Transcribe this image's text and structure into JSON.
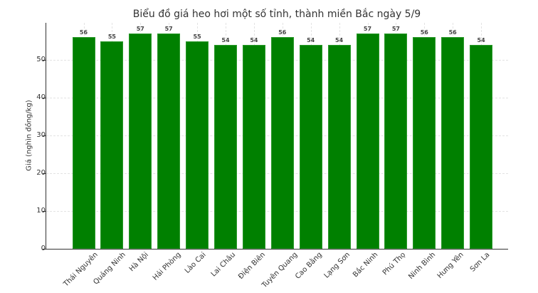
{
  "chart_data": {
    "type": "bar",
    "title": "Biểu đồ giá heo hơi một số tỉnh, thành miền Bắc ngày 5/9",
    "xlabel": "",
    "ylabel": "Giá (nghìn đồng/kg)",
    "categories": [
      "Thái Nguyên",
      "Quảng Ninh",
      "Hà Nội",
      "Hải Phòng",
      "Lào Cai",
      "Lai Châu",
      "Điện Biên",
      "Tuyên Quang",
      "Cao Bằng",
      "Lạng Sơn",
      "Bắc Ninh",
      "Phú Thọ",
      "Ninh Bình",
      "Hưng Yên",
      "Sơn La"
    ],
    "values": [
      56,
      55,
      57,
      57,
      55,
      54,
      54,
      56,
      54,
      54,
      57,
      57,
      56,
      56,
      54
    ],
    "value_labels": [
      "56",
      "55",
      "57",
      "57",
      "55",
      "54",
      "54",
      "56",
      "54",
      "54",
      "57",
      "57",
      "56",
      "56",
      "54"
    ],
    "ylim": [
      0,
      59.85
    ],
    "yticks": [
      "0",
      "10",
      "20",
      "30",
      "40",
      "50"
    ],
    "grid": true,
    "bar_color": "#008000",
    "legend": null
  }
}
